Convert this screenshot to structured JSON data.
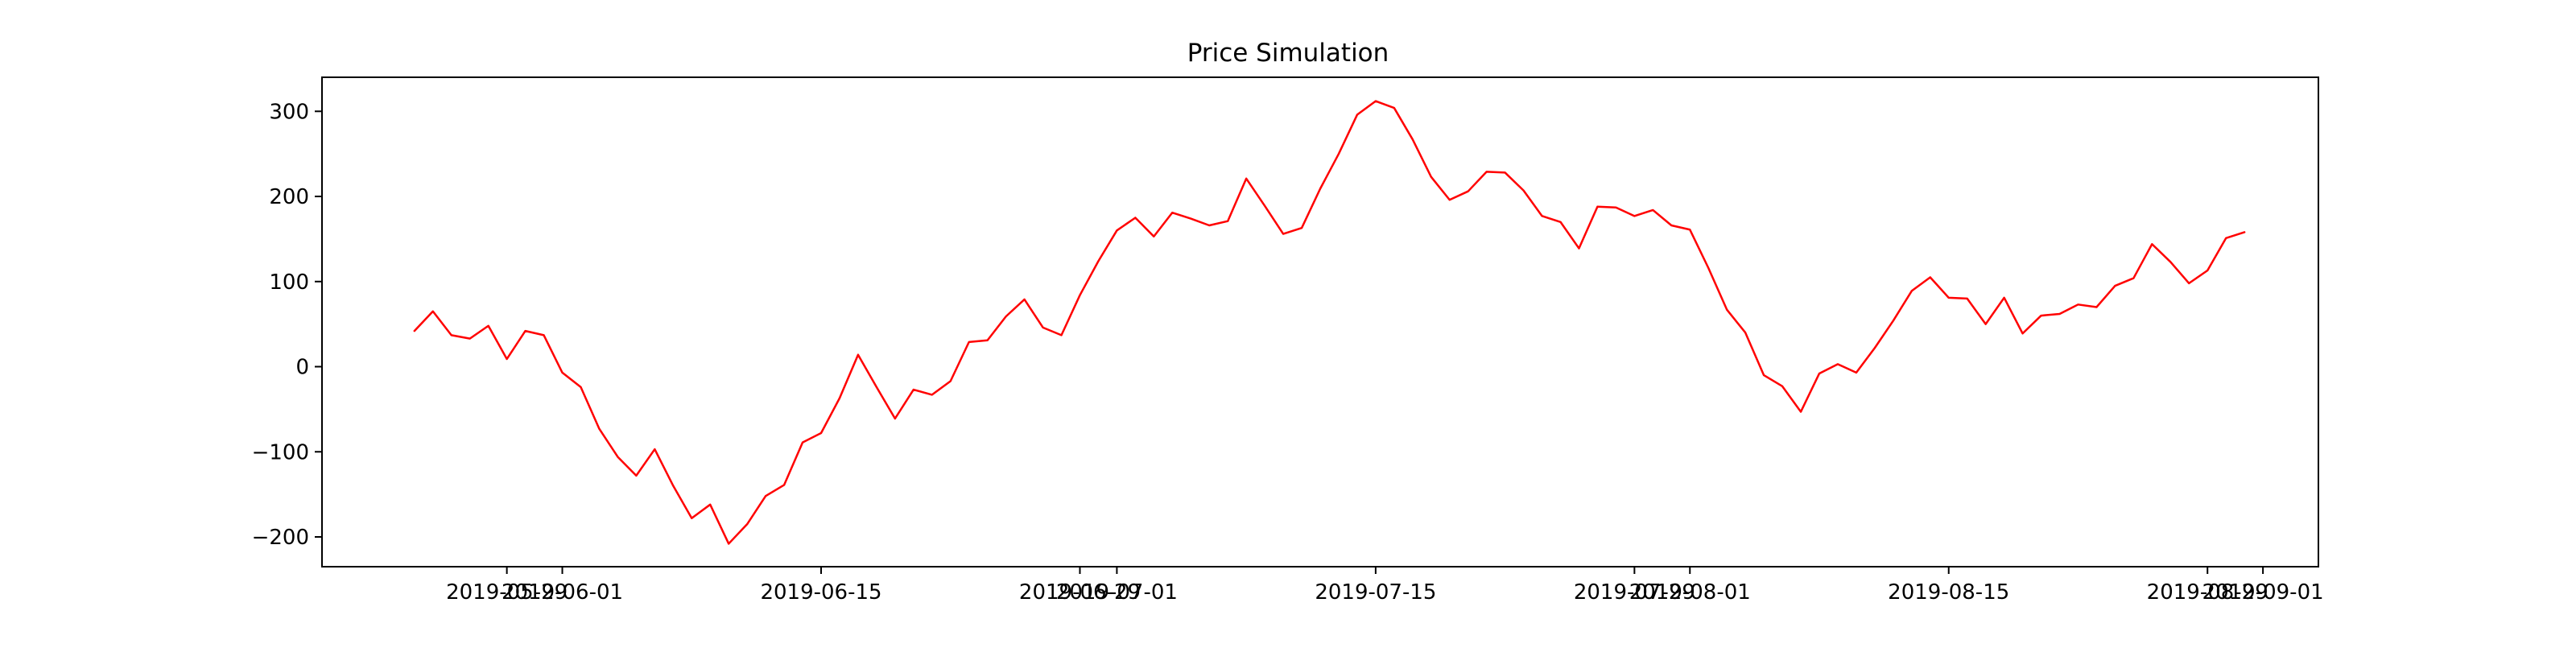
{
  "chart_data": {
    "type": "line",
    "title": "Price Simulation",
    "xlabel": "",
    "ylabel": "",
    "grid": false,
    "legend": "none",
    "x_start": "2019-05-24",
    "x_step_days": 1,
    "xlim": [
      "2019-05-19",
      "2019-09-04"
    ],
    "ylim": [
      -235,
      340
    ],
    "y_ticks": [
      300,
      200,
      100,
      0,
      -100,
      -200
    ],
    "y_tick_labels": [
      "300",
      "200",
      "100",
      "0",
      "−100",
      "−200"
    ],
    "x_ticks": [
      {
        "date": "2019-05-29",
        "label": "2019-05-29"
      },
      {
        "date": "2019-06-01",
        "label": "2019-06-01"
      },
      {
        "date": "2019-06-15",
        "label": "2019-06-15"
      },
      {
        "date": "2019-06-29",
        "label": "2019-06-29"
      },
      {
        "date": "2019-07-01",
        "label": "2019-07-01"
      },
      {
        "date": "2019-07-15",
        "label": "2019-07-15"
      },
      {
        "date": "2019-07-29",
        "label": "2019-07-29"
      },
      {
        "date": "2019-08-01",
        "label": "2019-08-01"
      },
      {
        "date": "2019-08-15",
        "label": "2019-08-15"
      },
      {
        "date": "2019-08-29",
        "label": "2019-08-29"
      },
      {
        "date": "2019-09-01",
        "label": "2019-09-01"
      }
    ],
    "series": [
      {
        "color": "#ff0000",
        "values": [
          42,
          65,
          37,
          33,
          48,
          9,
          42,
          37,
          -7,
          -24,
          -73,
          -106,
          -128,
          -97,
          -140,
          -178,
          -162,
          -208,
          -185,
          -152,
          -139,
          -89,
          -78,
          -37,
          14,
          -24,
          -61,
          -27,
          -33,
          -17,
          29,
          31,
          59,
          79,
          46,
          37,
          84,
          124,
          160,
          175,
          153,
          181,
          174,
          166,
          171,
          221,
          189,
          156,
          163,
          209,
          250,
          296,
          312,
          304,
          267,
          223,
          196,
          206,
          229,
          228,
          207,
          177,
          170,
          139,
          188,
          187,
          177,
          184,
          166,
          161,
          116,
          67,
          40,
          -10,
          -23,
          -53,
          -8,
          3,
          -7,
          22,
          54,
          89,
          105,
          81,
          80,
          50,
          81,
          39,
          60,
          62,
          73,
          70,
          95,
          104,
          144,
          123,
          98,
          113,
          151,
          158
        ]
      }
    ]
  }
}
